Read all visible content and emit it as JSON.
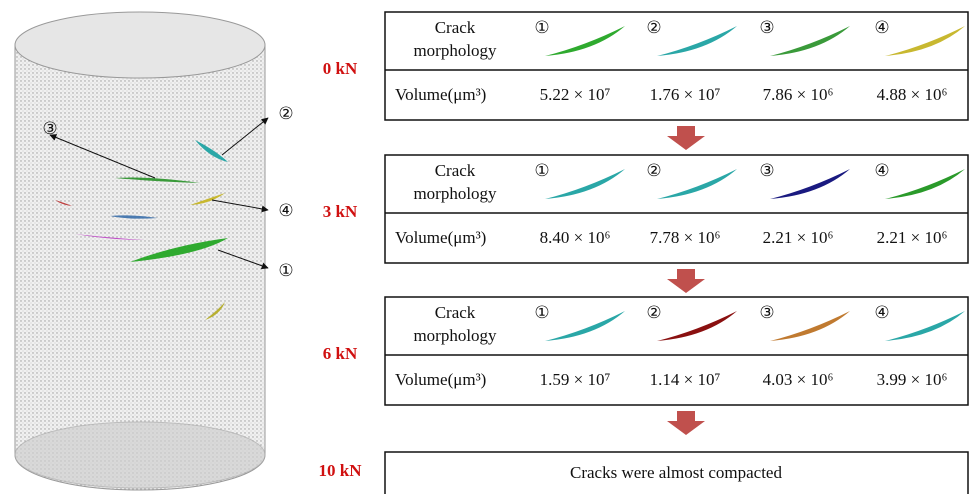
{
  "cylinder_labels": [
    "③",
    "②",
    "④",
    "①"
  ],
  "stages": [
    {
      "load": "0 kN",
      "morphology_label": [
        "Crack",
        "morphology"
      ],
      "cracks": [
        "①",
        "②",
        "③",
        "④"
      ],
      "volume_label": "Volume(μm³)",
      "volumes": [
        "5.22 × 10⁷",
        "1.76 × 10⁷",
        "7.86 × 10⁶",
        "4.88 × 10⁶"
      ]
    },
    {
      "load": "3 kN",
      "morphology_label": [
        "Crack",
        "morphology"
      ],
      "cracks": [
        "①",
        "②",
        "③",
        "④"
      ],
      "volume_label": "Volume(μm³)",
      "volumes": [
        "8.40 × 10⁶",
        "7.78 × 10⁶",
        "2.21 × 10⁶",
        "2.21 × 10⁶"
      ]
    },
    {
      "load": "6 kN",
      "morphology_label": [
        "Crack",
        "morphology"
      ],
      "cracks": [
        "①",
        "②",
        "③",
        "④"
      ],
      "volume_label": "Volume(μm³)",
      "volumes": [
        "1.59 × 10⁷",
        "1.14 × 10⁷",
        "4.03 × 10⁶",
        "3.99 × 10⁶"
      ]
    }
  ],
  "final": {
    "load": "10 kN",
    "text": "Cracks were almost compacted"
  }
}
